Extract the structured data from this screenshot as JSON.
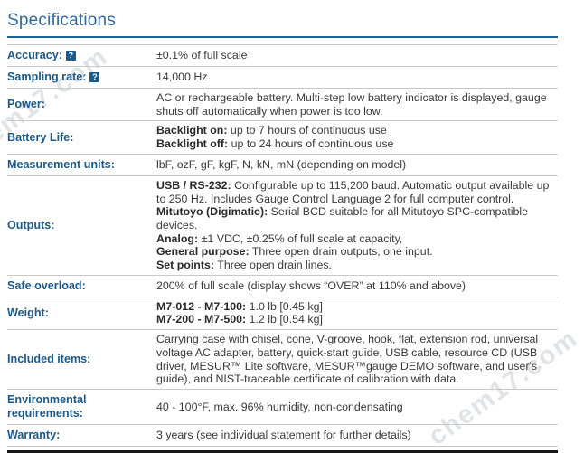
{
  "page": {
    "title": "Specifications"
  },
  "watermark": {
    "text": "chem17.com"
  },
  "help_icon_glyph": "?",
  "colors": {
    "accent": "#1d5a87",
    "title": "#35689a",
    "title_rule": "#1d6396",
    "body_text": "#3b3b3b",
    "separator": "#c9c9c9",
    "bottom_border": "#151515"
  },
  "table": {
    "rows": [
      {
        "label": "Accuracy:",
        "help": true,
        "value": [
          [
            {
              "t": "±0.1% of full scale",
              "b": false
            }
          ]
        ]
      },
      {
        "label": "Sampling rate:",
        "help": true,
        "value": [
          [
            {
              "t": "14,000 Hz",
              "b": false
            }
          ]
        ]
      },
      {
        "label": "Power:",
        "help": false,
        "value": [
          [
            {
              "t": "AC or rechargeable battery. Multi-step low battery indicator is displayed, gauge shuts off automatically when power is too low.",
              "b": false
            }
          ]
        ]
      },
      {
        "label": "Battery Life:",
        "help": false,
        "value": [
          [
            {
              "t": "Backlight on:",
              "b": true
            },
            {
              "t": " up to 7 hours of continuous use",
              "b": false
            }
          ],
          [
            {
              "t": "Backlight off:",
              "b": true
            },
            {
              "t": " up to 24 hours of continuous use",
              "b": false
            }
          ]
        ]
      },
      {
        "label": "Measurement units:",
        "help": false,
        "value": [
          [
            {
              "t": "lbF, ozF, gF, kgF, N, kN, mN (depending on model)",
              "b": false
            }
          ]
        ]
      },
      {
        "label": "Outputs:",
        "help": false,
        "value": [
          [
            {
              "t": "USB / RS-232:",
              "b": true
            },
            {
              "t": " Configurable up to 115,200 baud. Automatic output available up to 250 Hz. Includes Gauge Control Language 2 for full computer control.",
              "b": false
            }
          ],
          [
            {
              "t": "Mitutoyo (Digimatic):",
              "b": true
            },
            {
              "t": " Serial BCD suitable for all Mitutoyo SPC-compatible devices.",
              "b": false
            }
          ],
          [
            {
              "t": "Analog:",
              "b": true
            },
            {
              "t": " ±1 VDC, ±0.25% of full scale at capacity,",
              "b": false
            }
          ],
          [
            {
              "t": "General purpose:",
              "b": true
            },
            {
              "t": " Three open drain outputs, one input.",
              "b": false
            }
          ],
          [
            {
              "t": "Set points:",
              "b": true
            },
            {
              "t": " Three open drain lines.",
              "b": false
            }
          ]
        ]
      },
      {
        "label": "Safe overload:",
        "help": false,
        "value": [
          [
            {
              "t": "200% of full scale (display shows “OVER” at 110% and above)",
              "b": false
            }
          ]
        ]
      },
      {
        "label": "Weight:",
        "help": false,
        "value": [
          [
            {
              "t": "M7-012 - M7-100:",
              "b": true
            },
            {
              "t": " 1.0 lb [0.45 kg]",
              "b": false
            }
          ],
          [
            {
              "t": "M7-200 - M7-500:",
              "b": true
            },
            {
              "t": " 1.2 lb [0.54 kg]",
              "b": false
            }
          ]
        ]
      },
      {
        "label": "Included items:",
        "help": false,
        "value": [
          [
            {
              "t": "Carrying case with chisel, cone, V-groove, hook, flat, extension rod, universal voltage AC adapter, battery, quick-start guide, USB cable, resource CD (USB driver, MESUR™ Lite software, MESUR™gauge DEMO software, and user's guide), and NIST-traceable certificate of calibration with data.",
              "b": false
            }
          ]
        ]
      },
      {
        "label": "Environmental requirements:",
        "help": false,
        "value": [
          [
            {
              "t": "40 - 100°F, max. 96% humidity, non-condensating",
              "b": false
            }
          ]
        ]
      },
      {
        "label": "Warranty:",
        "help": false,
        "value": [
          [
            {
              "t": "3 years (see individual statement for further details)",
              "b": false
            }
          ]
        ]
      }
    ]
  }
}
